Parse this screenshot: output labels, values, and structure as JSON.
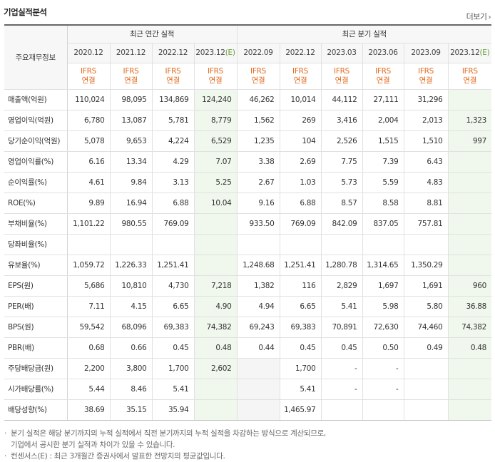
{
  "header": {
    "title": "기업실적분석",
    "more_label": "더보기",
    "more_arrow": "›"
  },
  "table": {
    "corner_label": "주요재무정보",
    "annual_group": "최근 연간 실적",
    "quarter_group": "최근 분기 실적",
    "annual_periods": [
      "2020.12",
      "2021.12",
      "2022.12",
      "2023.12(E)"
    ],
    "quarter_periods": [
      "2022.09",
      "2022.12",
      "2023.03",
      "2023.06",
      "2023.09",
      "2023.12(E)"
    ],
    "ifrs_top": "IFRS",
    "ifrs_bottom": "연결",
    "rows": [
      {
        "label": "매출액(억원)",
        "annual": [
          "110,024",
          "98,095",
          "134,869",
          "124,240"
        ],
        "quarter": [
          "46,262",
          "10,014",
          "44,112",
          "27,111",
          "31,296",
          ""
        ]
      },
      {
        "label": "영업이익(억원)",
        "annual": [
          "6,780",
          "13,087",
          "5,781",
          "8,779"
        ],
        "quarter": [
          "1,562",
          "269",
          "3,416",
          "2,004",
          "2,013",
          "1,323"
        ]
      },
      {
        "label": "당기순이익(억원)",
        "annual": [
          "5,078",
          "9,653",
          "4,224",
          "6,529"
        ],
        "quarter": [
          "1,235",
          "104",
          "2,526",
          "1,515",
          "1,510",
          "997"
        ]
      },
      {
        "label": "영업이익률(%)",
        "annual": [
          "6.16",
          "13.34",
          "4.29",
          "7.07"
        ],
        "quarter": [
          "3.38",
          "2.69",
          "7.75",
          "7.39",
          "6.43",
          ""
        ]
      },
      {
        "label": "순이익률(%)",
        "annual": [
          "4.61",
          "9.84",
          "3.13",
          "5.25"
        ],
        "quarter": [
          "2.67",
          "1.03",
          "5.73",
          "5.59",
          "4.83",
          ""
        ]
      },
      {
        "label": "ROE(%)",
        "annual": [
          "9.89",
          "16.94",
          "6.88",
          "10.04"
        ],
        "quarter": [
          "9.16",
          "6.88",
          "8.57",
          "8.58",
          "8.81",
          ""
        ]
      },
      {
        "label": "부채비율(%)",
        "annual": [
          "1,101.22",
          "980.55",
          "769.09",
          ""
        ],
        "quarter": [
          "933.50",
          "769.09",
          "842.09",
          "837.05",
          "757.81",
          ""
        ]
      },
      {
        "label": "당좌비율(%)",
        "annual": [
          "",
          "",
          "",
          ""
        ],
        "quarter": [
          "",
          "",
          "",
          "",
          "",
          ""
        ]
      },
      {
        "label": "유보율(%)",
        "annual": [
          "1,059.72",
          "1,226.33",
          "1,251.41",
          ""
        ],
        "quarter": [
          "1,248.68",
          "1,251.41",
          "1,280.78",
          "1,314.65",
          "1,350.29",
          ""
        ]
      },
      {
        "label": "EPS(원)",
        "annual": [
          "5,686",
          "10,810",
          "4,730",
          "7,218"
        ],
        "quarter": [
          "1,382",
          "116",
          "2,829",
          "1,697",
          "1,691",
          "960"
        ]
      },
      {
        "label": "PER(배)",
        "annual": [
          "7.11",
          "4.15",
          "6.65",
          "4.90"
        ],
        "quarter": [
          "4.94",
          "6.65",
          "5.41",
          "5.98",
          "5.80",
          "36.88"
        ]
      },
      {
        "label": "BPS(원)",
        "annual": [
          "59,542",
          "68,096",
          "69,383",
          "74,382"
        ],
        "quarter": [
          "69,243",
          "69,383",
          "70,891",
          "72,630",
          "74,460",
          "74,382"
        ]
      },
      {
        "label": "PBR(배)",
        "annual": [
          "0.68",
          "0.66",
          "0.45",
          "0.48"
        ],
        "quarter": [
          "0.44",
          "0.45",
          "0.45",
          "0.50",
          "0.49",
          "0.48"
        ]
      },
      {
        "label": "주당배당금(원)",
        "annual": [
          "2,200",
          "3,800",
          "1,700",
          "2,602"
        ],
        "quarter": [
          "",
          "1,700",
          "-",
          "-",
          "",
          ""
        ]
      },
      {
        "label": "시가배당률(%)",
        "annual": [
          "5.44",
          "8.46",
          "5.41",
          ""
        ],
        "quarter": [
          "",
          "5.41",
          "-",
          "-",
          "",
          ""
        ]
      },
      {
        "label": "배당성향(%)",
        "annual": [
          "38.69",
          "35.15",
          "35.94",
          ""
        ],
        "quarter": [
          "",
          "1,465.97",
          "",
          "",
          "",
          ""
        ]
      }
    ]
  },
  "notes": [
    "분기 실적은 해당 분기까지의 누적 실적에서 직전 분기까지의 누적 실적을 차감하는 방식으로 계산되므로,",
    "기업에서 공시한 분기 실적과 차이가 있을 수 있습니다.",
    "컨센서스(E) : 최근 3개월간 증권사에서 발표한 전망치의 평균값입니다."
  ]
}
